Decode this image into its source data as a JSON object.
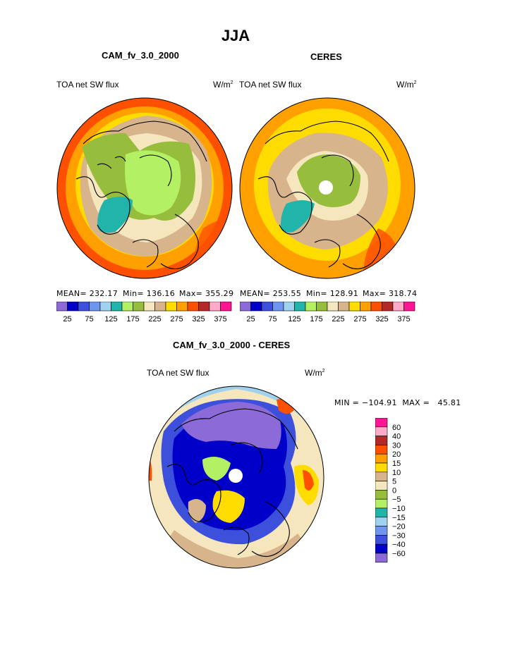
{
  "title": "JJA",
  "panels": [
    {
      "subtitle": "CAM_fv_3.0_2000",
      "left_label": "TOA net SW flux",
      "unit": "W/m",
      "unit_sup": "2",
      "stats": {
        "mean": "MEAN= 232.17",
        "min": "Min= 136.16",
        "max": "Max= 355.29"
      }
    },
    {
      "subtitle": "CERES",
      "left_label": "TOA net SW flux",
      "unit": "W/m",
      "unit_sup": "2",
      "stats": {
        "mean": "MEAN= 253.55",
        "min": "Min= 128.91",
        "max": "Max= 318.74"
      }
    },
    {
      "subtitle": "CAM_fv_3.0_2000 - CERES",
      "left_label": "TOA net SW flux",
      "unit": "W/m",
      "unit_sup": "2",
      "stats": {
        "min_max": "MIN = −104.91  MAX =   45.81"
      }
    }
  ],
  "colorbar_top": {
    "colors": [
      "#8c6bd9",
      "#0000c8",
      "#3c50dc",
      "#6e96f0",
      "#a0d2f0",
      "#20b4aa",
      "#b4f064",
      "#96be3c",
      "#f5e6be",
      "#d7b48c",
      "#ffdc00",
      "#ffa000",
      "#ff5000",
      "#b42828",
      "#ffaac8",
      "#ff1493"
    ],
    "labels": [
      "25",
      "75",
      "125",
      "175",
      "225",
      "275",
      "325",
      "375"
    ]
  },
  "colorbar_diff": {
    "colors": [
      "#8c6bd9",
      "#0000c8",
      "#3c50dc",
      "#6e96f0",
      "#a0d2f0",
      "#20b4aa",
      "#b4f064",
      "#96be3c",
      "#f5e6be",
      "#d7b48c",
      "#ffdc00",
      "#ffa000",
      "#ff5000",
      "#b42828",
      "#ffaac8",
      "#ff1493"
    ],
    "labels": [
      "60",
      "40",
      "30",
      "20",
      "15",
      "10",
      "5",
      "0",
      "−5",
      "−10",
      "−15",
      "−20",
      "−30",
      "−40",
      "−60"
    ]
  }
}
